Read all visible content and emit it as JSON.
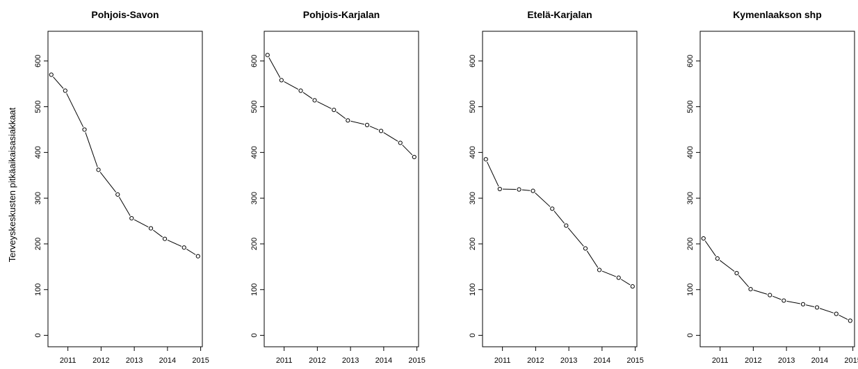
{
  "chart_data": {
    "type": "line",
    "ylabel": "Terveyskeskusten pitkäaikaisasiakkaat",
    "xticks": [
      2011,
      2012,
      2013,
      2014,
      2015
    ],
    "yticks": [
      0,
      100,
      200,
      300,
      400,
      500,
      600
    ],
    "xlim": [
      2010.4,
      2015.05
    ],
    "ylim": [
      -25,
      665
    ],
    "grid": false,
    "panels": [
      {
        "title": "Pohjois-Savon",
        "x": [
          2010.5,
          2010.92,
          2011.5,
          2011.92,
          2012.5,
          2012.92,
          2013.5,
          2013.92,
          2014.5,
          2014.92
        ],
        "values": [
          570,
          535,
          450,
          362,
          308,
          256,
          234,
          211,
          192,
          173
        ]
      },
      {
        "title": "Pohjois-Karjalan",
        "x": [
          2010.5,
          2010.92,
          2011.5,
          2011.92,
          2012.5,
          2012.92,
          2013.5,
          2013.92,
          2014.5,
          2014.92
        ],
        "values": [
          613,
          558,
          535,
          514,
          493,
          470,
          460,
          447,
          421,
          390
        ]
      },
      {
        "title": "Etelä-Karjalan",
        "x": [
          2010.5,
          2010.92,
          2011.5,
          2011.92,
          2012.5,
          2012.92,
          2013.5,
          2013.92,
          2014.5,
          2014.92
        ],
        "values": [
          385,
          320,
          319,
          316,
          277,
          240,
          190,
          143,
          126,
          107
        ]
      },
      {
        "title": "Kymenlaakson shp",
        "x": [
          2010.5,
          2010.92,
          2011.5,
          2011.92,
          2012.5,
          2012.92,
          2013.5,
          2013.92,
          2014.5,
          2014.92
        ],
        "values": [
          212,
          168,
          136,
          101,
          88,
          76,
          68,
          61,
          47,
          32
        ]
      }
    ]
  }
}
